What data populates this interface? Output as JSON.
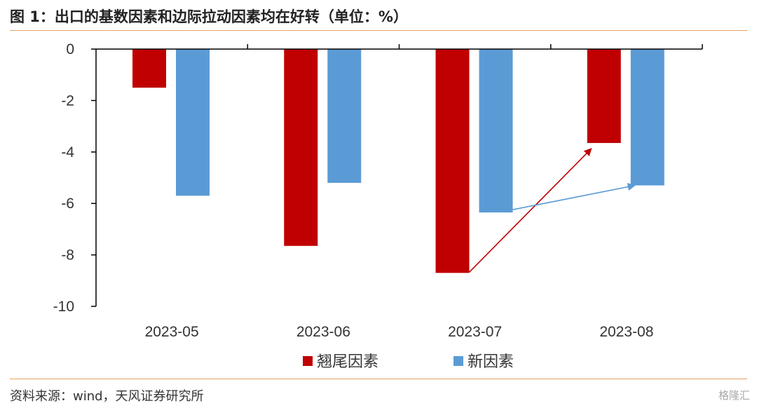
{
  "header": {
    "title": "图 1：出口的基数因素和边际拉动因素均在好转（单位：%）"
  },
  "footer": {
    "source": "资料来源：wind，天风证券研究所",
    "watermark": "格隆汇"
  },
  "colors": {
    "series_1": "#c00000",
    "series_2": "#5b9bd5",
    "rule": "#e6a060"
  },
  "chart_data": {
    "type": "bar",
    "categories": [
      "2023-05",
      "2023-06",
      "2023-07",
      "2023-08"
    ],
    "series": [
      {
        "name": "翘尾因素",
        "values": [
          -1.5,
          -7.65,
          -8.7,
          -3.65
        ]
      },
      {
        "name": "新因素",
        "values": [
          -5.7,
          -5.2,
          -6.35,
          -5.3
        ]
      }
    ],
    "ylim": [
      -10,
      0
    ],
    "yticks": [
      0,
      -2,
      -4,
      -6,
      -8,
      -10
    ],
    "legend": "bottom",
    "grid": false,
    "annotations": [
      {
        "type": "arrow",
        "series": "翘尾因素",
        "from": "2023-07",
        "to": "2023-08"
      },
      {
        "type": "arrow",
        "series": "新因素",
        "from": "2023-07",
        "to": "2023-08"
      }
    ]
  }
}
